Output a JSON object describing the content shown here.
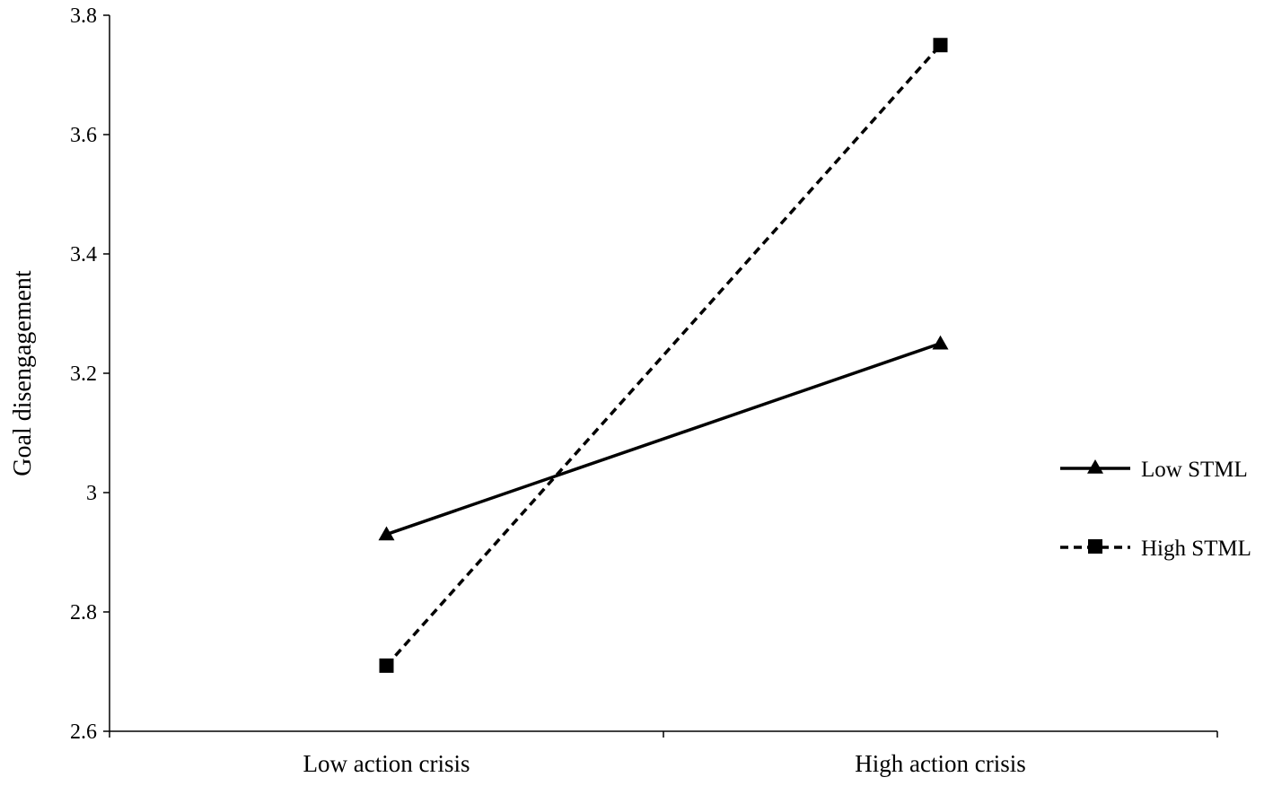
{
  "chart_data": {
    "type": "line",
    "categories": [
      "Low action crisis",
      "High action crisis"
    ],
    "series": [
      {
        "name": "Low STML",
        "values": [
          2.93,
          3.25
        ],
        "marker": "triangle",
        "line_style": "solid",
        "color": "#000000"
      },
      {
        "name": "High STML",
        "values": [
          2.71,
          3.75
        ],
        "marker": "square",
        "line_style": "dashed",
        "color": "#000000"
      }
    ],
    "ylabel": "Goal disengagement",
    "xlabel": "",
    "ylim": [
      2.6,
      3.8
    ],
    "yticks": [
      "2.6",
      "2.8",
      "3",
      "3.2",
      "3.4",
      "3.6",
      "3.8"
    ],
    "grid": false,
    "legend_position": "right"
  }
}
